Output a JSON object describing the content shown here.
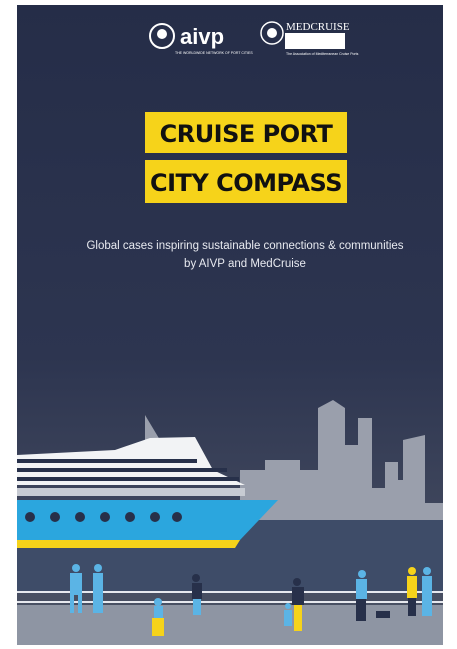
{
  "logos": {
    "aivp": {
      "name": "aivp",
      "tagline": "THE WORLDWIDE NETWORK OF PORT CITIES"
    },
    "medcruise": {
      "name": "MEDCRUISE",
      "tagline": "The Association of Mediterranean Cruise Ports"
    }
  },
  "title": {
    "line1": "CRUISE PORT",
    "line2": "CITY COMPASS"
  },
  "subtitle": {
    "line1": "Global cases inspiring sustainable connections & communities",
    "line2": "by AIVP and MedCruise"
  }
}
